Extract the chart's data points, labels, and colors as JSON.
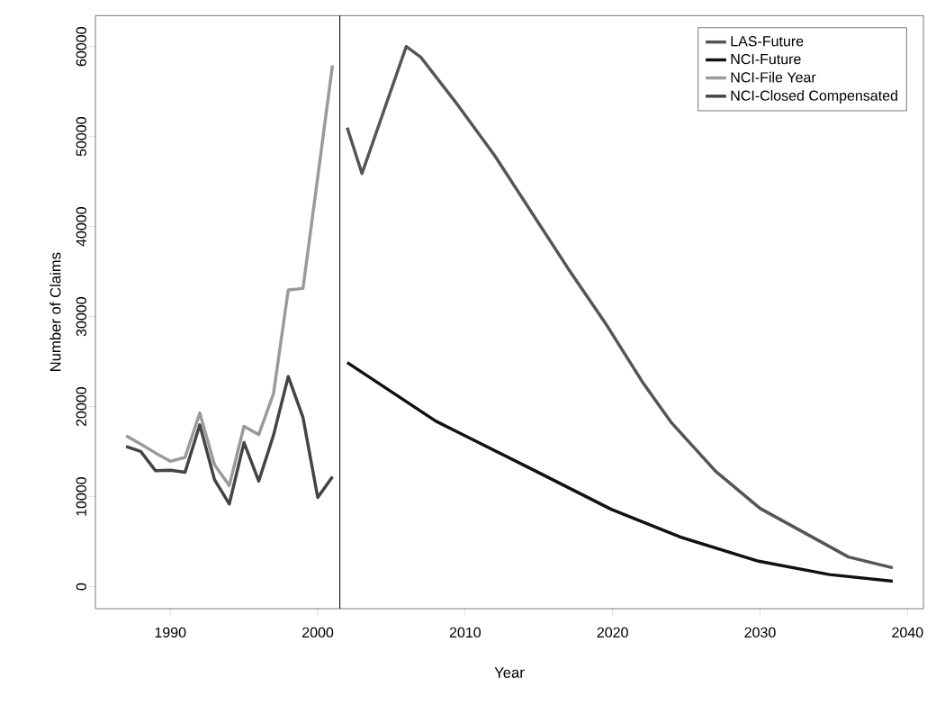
{
  "chart_data": {
    "type": "line",
    "xlabel": "Year",
    "ylabel": "Number of Claims",
    "xlim": [
      1984.92,
      2041.08
    ],
    "ylim": [
      -2440,
      63440
    ],
    "xticks": [
      1990,
      2000,
      2010,
      2020,
      2030,
      2040
    ],
    "yticks": [
      0,
      10000,
      20000,
      30000,
      40000,
      50000,
      60000
    ],
    "grid": false,
    "legend": "top right",
    "line_style": "solid",
    "marker": "none",
    "ref_lines": [
      {
        "axis": "x",
        "value": 2001.5,
        "color": "#000000"
      }
    ],
    "series": [
      {
        "name": "LAS-Future",
        "color": "#555555",
        "x": [
          2002,
          2003,
          2006,
          2007,
          2009.5,
          2012,
          2017,
          2019.5,
          2022,
          2024,
          2027,
          2030,
          2032,
          2036,
          2039
        ],
        "values": [
          51000,
          45900,
          60000,
          58800,
          53500,
          47900,
          35300,
          29300,
          22800,
          18200,
          12800,
          8700,
          6900,
          3300,
          2100
        ]
      },
      {
        "name": "NCI-Future",
        "color": "#111111",
        "x": [
          2002,
          2008,
          2014.65,
          2019.9,
          2024.7,
          2029.9,
          2034.7,
          2039
        ],
        "values": [
          24900,
          18400,
          12950,
          8600,
          5460,
          2830,
          1350,
          620
        ]
      },
      {
        "name": "NCI-File Year",
        "color": "#9a9a9a",
        "x": [
          1987,
          1988,
          1989,
          1990,
          1991,
          1992,
          1993,
          1994,
          1995,
          1996,
          1997,
          1998,
          1999,
          2000,
          2001
        ],
        "values": [
          16770,
          15840,
          14850,
          13930,
          14360,
          19300,
          13540,
          11230,
          17820,
          16900,
          21440,
          32970,
          33130,
          45500,
          57930
        ]
      },
      {
        "name": "NCI-Closed Compensated",
        "color": "#444444",
        "x": [
          1987,
          1988,
          1989,
          1990,
          1991,
          1992,
          1993,
          1994,
          1995,
          1996,
          1997,
          1998,
          1999,
          2000,
          2001
        ],
        "values": [
          15580,
          15020,
          12880,
          12940,
          12710,
          17980,
          11890,
          9190,
          16010,
          11730,
          16830,
          23350,
          18800,
          9910,
          12220
        ]
      }
    ]
  }
}
